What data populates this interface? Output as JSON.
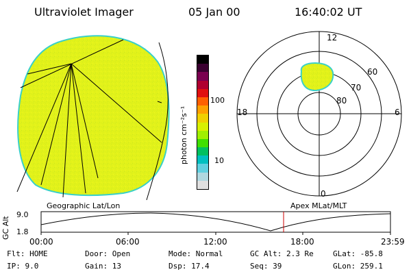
{
  "header": {
    "title": "Ultraviolet Imager",
    "date": "05 Jan 00",
    "time": "16:40:02 UT"
  },
  "colorbar": {
    "unit_label": "photon cm⁻²s⁻¹",
    "tick_100": "100",
    "tick_10": "10",
    "colors": [
      "#000000",
      "#3a0030",
      "#7a0050",
      "#b00030",
      "#e01010",
      "#ff6000",
      "#ffa000",
      "#f0d000",
      "#d8f000",
      "#a0f000",
      "#40e000",
      "#00c060",
      "#00c0c0",
      "#60d0e0",
      "#b0d8e0",
      "#e0e0e0"
    ]
  },
  "polar": {
    "lat_labels": [
      "60",
      "70",
      "80"
    ],
    "mlt_labels": {
      "top": "12",
      "left": "18",
      "right": "6",
      "bottom": "0"
    },
    "fill_color": "#e2f21a",
    "edge_color": "#39d0c8"
  },
  "geo": {
    "fill_color": "#e2f21a",
    "edge_color": "#39d0c8"
  },
  "labels": {
    "geo_caption": "Geographic Lat/Lon",
    "apex_caption": "Apex  MLat/MLT"
  },
  "orbit": {
    "axis_name": "GC Alt",
    "y_ticks": [
      "9.0",
      "1.8"
    ],
    "x_ticks": [
      "00:00",
      "06:00",
      "12:00",
      "18:00",
      "23:59"
    ],
    "marker_color": "#cc0000"
  },
  "info": {
    "flt": "Flt: HOME",
    "ip": "IP:  9.0",
    "door": "Door: Open",
    "gain": "Gain: 13",
    "mode": "Mode: Normal",
    "dsp": "Dsp:    17.4",
    "gcalt": "GC Alt: 2.3 Re",
    "seq": "Seq: 39",
    "glat": "GLat: -85.8",
    "glon": "GLon: 259.1"
  }
}
